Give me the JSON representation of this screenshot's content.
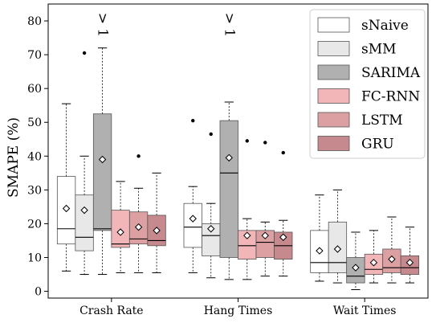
{
  "chart_data": {
    "type": "boxplot",
    "title": "",
    "xlabel": "",
    "ylabel": "SMAPE (%)",
    "ylim": [
      -2,
      85
    ],
    "yticks": [
      0,
      10,
      20,
      30,
      40,
      50,
      60,
      70,
      80
    ],
    "grid": false,
    "legend_position": "top-right",
    "categories": [
      "Crash Rate",
      "Hang Times",
      "Wait Times"
    ],
    "series": [
      {
        "name": "sNaive",
        "color": "#ffffff",
        "boxes": [
          {
            "whislo": 6.0,
            "q1": 14.0,
            "median": 18.5,
            "q3": 34.0,
            "whishi": 55.5,
            "mean": 24.5,
            "fliers": []
          },
          {
            "whislo": 5.5,
            "q1": 13.0,
            "median": 19.0,
            "q3": 26.0,
            "whishi": 31.0,
            "mean": 21.5,
            "fliers": [
              50.5
            ]
          },
          {
            "whislo": 3.0,
            "q1": 5.5,
            "median": 8.5,
            "q3": 18.0,
            "whishi": 28.5,
            "mean": 12.0,
            "fliers": []
          }
        ]
      },
      {
        "name": "sMM",
        "color": "#e8e8e8",
        "boxes": [
          {
            "whislo": 5.0,
            "q1": 12.0,
            "median": 16.0,
            "q3": 28.5,
            "whishi": 40.0,
            "mean": 24.0,
            "fliers": [
              70.5
            ]
          },
          {
            "whislo": 4.0,
            "q1": 10.5,
            "median": 16.5,
            "q3": 20.0,
            "whishi": 26.0,
            "mean": 18.5,
            "fliers": [
              46.5
            ]
          },
          {
            "whislo": 2.5,
            "q1": 5.5,
            "median": 8.5,
            "q3": 20.5,
            "whishi": 30.0,
            "mean": 12.5,
            "fliers": []
          }
        ]
      },
      {
        "name": "SARIMA",
        "color": "#b0b0b0",
        "boxes": [
          {
            "whislo": 5.0,
            "q1": 18.0,
            "median": 18.5,
            "q3": 52.5,
            "whishi": 72.0,
            "mean": 39.0,
            "fliers": []
          },
          {
            "whislo": 3.5,
            "q1": 10.0,
            "median": 35.0,
            "q3": 50.5,
            "whishi": 56.0,
            "mean": 39.5,
            "fliers": []
          },
          {
            "whislo": 0.5,
            "q1": 2.5,
            "median": 4.5,
            "q3": 10.0,
            "whishi": 17.5,
            "mean": 7.0,
            "fliers": []
          }
        ]
      },
      {
        "name": "FC-RNN",
        "color": "#f2b6b8",
        "boxes": [
          {
            "whislo": 5.5,
            "q1": 13.0,
            "median": 14.0,
            "q3": 24.0,
            "whishi": 32.5,
            "mean": 17.5,
            "fliers": []
          },
          {
            "whislo": 3.5,
            "q1": 9.5,
            "median": 13.5,
            "q3": 18.0,
            "whishi": 21.5,
            "mean": 16.5,
            "fliers": [
              44.5
            ]
          },
          {
            "whislo": 2.5,
            "q1": 5.0,
            "median": 6.5,
            "q3": 11.0,
            "whishi": 18.0,
            "mean": 8.5,
            "fliers": []
          }
        ]
      },
      {
        "name": "LSTM",
        "color": "#dca0a2",
        "boxes": [
          {
            "whislo": 5.5,
            "q1": 14.0,
            "median": 15.5,
            "q3": 23.5,
            "whishi": 30.5,
            "mean": 19.0,
            "fliers": [
              40.0
            ]
          },
          {
            "whislo": 4.5,
            "q1": 10.0,
            "median": 14.5,
            "q3": 18.0,
            "whishi": 20.5,
            "mean": 16.5,
            "fliers": [
              44.0
            ]
          },
          {
            "whislo": 2.5,
            "q1": 5.5,
            "median": 7.0,
            "q3": 12.5,
            "whishi": 22.0,
            "mean": 9.5,
            "fliers": []
          }
        ]
      },
      {
        "name": "GRU",
        "color": "#c68a8e",
        "boxes": [
          {
            "whislo": 5.5,
            "q1": 13.5,
            "median": 15.0,
            "q3": 22.5,
            "whishi": 35.0,
            "mean": 18.0,
            "fliers": []
          },
          {
            "whislo": 4.5,
            "q1": 9.5,
            "median": 13.5,
            "q3": 17.5,
            "whishi": 21.0,
            "mean": 16.0,
            "fliers": [
              41.0
            ]
          },
          {
            "whislo": 2.5,
            "q1": 5.0,
            "median": 7.0,
            "q3": 10.5,
            "whishi": 19.0,
            "mean": 8.5,
            "fliers": []
          }
        ]
      }
    ],
    "annotations": [
      {
        "text": "> 1",
        "category": "Crash Rate",
        "series": "SARIMA"
      },
      {
        "text": "> 1",
        "category": "Hang Times",
        "series": "SARIMA"
      }
    ]
  }
}
